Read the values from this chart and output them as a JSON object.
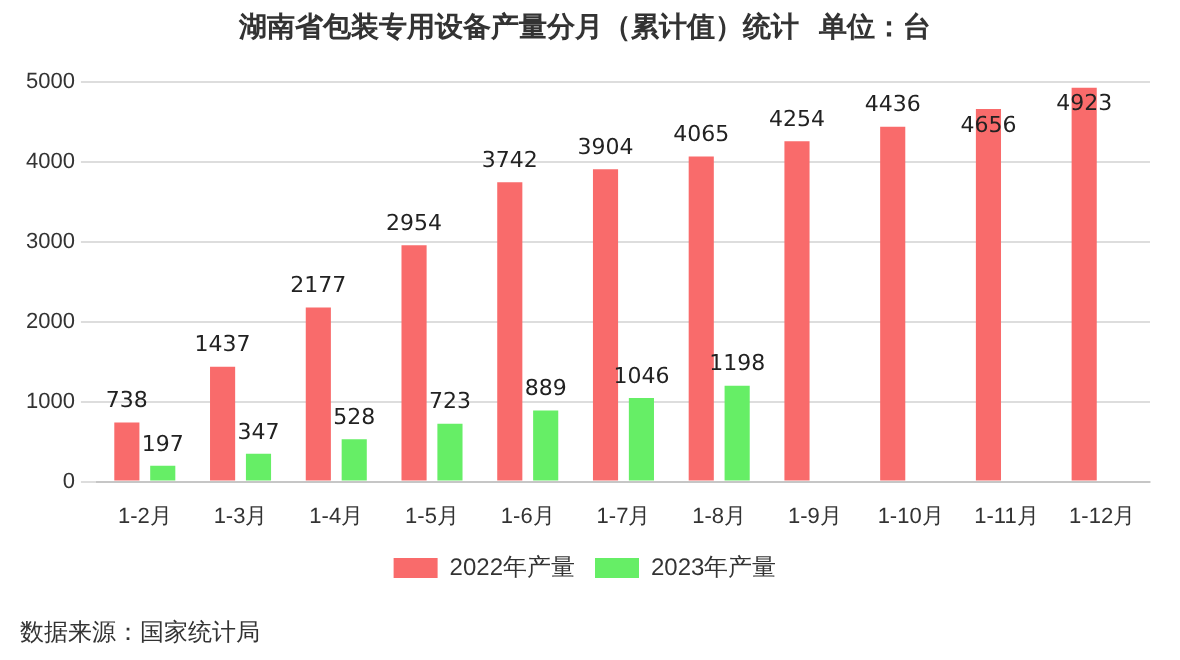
{
  "chart_data": {
    "type": "bar",
    "title": "湖南省包装专用设备产量分月（累计值）统计  单位：台",
    "categories": [
      "1-2月",
      "1-3月",
      "1-4月",
      "1-5月",
      "1-6月",
      "1-7月",
      "1-8月",
      "1-9月",
      "1-10月",
      "1-11月",
      "1-12月"
    ],
    "series": [
      {
        "name": "2022年产量",
        "color": "#f96b6b",
        "values": [
          738,
          1437,
          2177,
          2954,
          3742,
          3904,
          4065,
          4254,
          4436,
          4656,
          4923
        ]
      },
      {
        "name": "2023年产量",
        "color": "#66ee66",
        "values": [
          197,
          347,
          528,
          723,
          889,
          1046,
          1198,
          null,
          null,
          null,
          null
        ]
      }
    ],
    "ylim": [
      0,
      5000
    ],
    "yticks": [
      0,
      1000,
      2000,
      3000,
      4000,
      5000
    ],
    "grid": "y",
    "legend": "bottom",
    "data_labels": true,
    "annotations": [
      "数据来源：国家统计局"
    ]
  }
}
